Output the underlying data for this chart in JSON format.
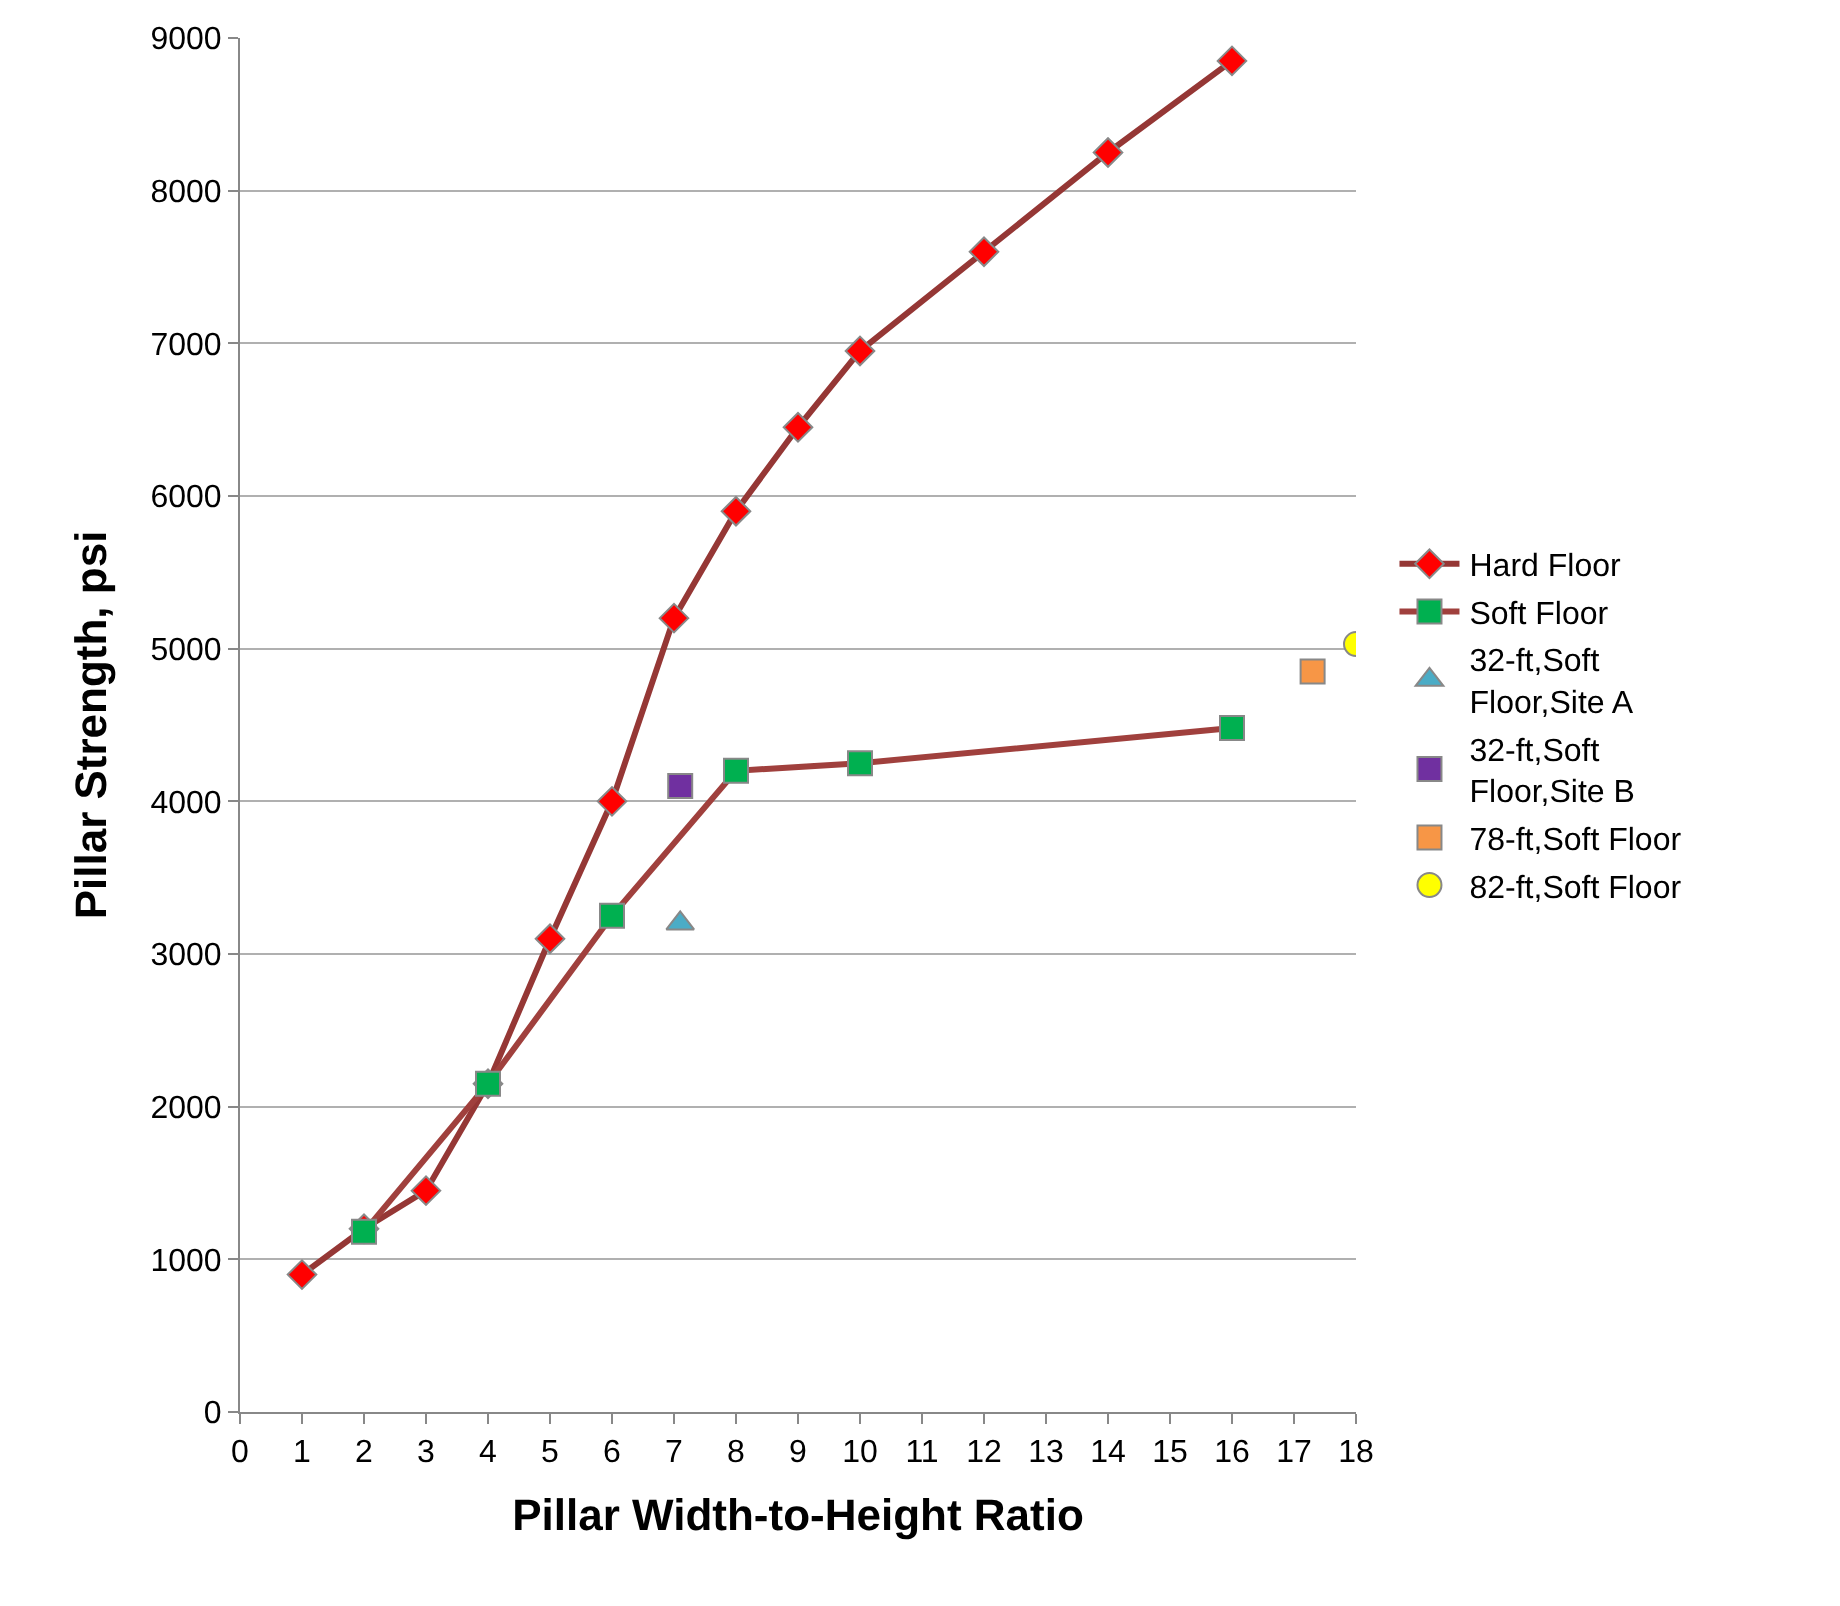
{
  "chart_data": {
    "type": "line",
    "xlabel": "Pillar Width-to-Height Ratio",
    "ylabel": "Pillar Strength, psi",
    "xlim": [
      0,
      18
    ],
    "xticks": [
      0,
      1,
      2,
      3,
      4,
      5,
      6,
      7,
      8,
      9,
      10,
      11,
      12,
      13,
      14,
      15,
      16,
      17,
      18
    ],
    "ylim": [
      0,
      9000
    ],
    "yticks": [
      0,
      1000,
      2000,
      3000,
      4000,
      5000,
      6000,
      7000,
      8000,
      9000
    ],
    "grid": "y",
    "legend": "right",
    "series": [
      {
        "name": "Hard Floor",
        "color": "#953735",
        "colors": [
          "#ff0000",
          "#ff0000",
          "#ff0000",
          "#ff0000",
          "#ff0000",
          "#ff0000",
          "#ff0000",
          "#ff0000",
          "#ff0000",
          "#ff0000",
          "#ff0000",
          "#ff0000",
          "#ff0000"
        ],
        "marker": "diamond",
        "x": [
          1,
          2,
          3,
          4,
          5,
          6,
          7,
          8,
          9,
          10,
          12,
          14,
          16
        ],
        "values": [
          900,
          1200,
          1450,
          2150,
          3100,
          4000,
          5200,
          5900,
          6450,
          6950,
          7600,
          8250,
          8850
        ]
      },
      {
        "name": "Soft Floor",
        "color": "#a0403d",
        "colors": [
          "#00b050",
          "#00b050",
          "#00b050",
          "#00b050",
          "#00b050",
          "#00b050"
        ],
        "marker": "square",
        "x": [
          2,
          4,
          6,
          8,
          10,
          16
        ],
        "values": [
          1180,
          2150,
          3250,
          4200,
          4250,
          4480
        ]
      },
      {
        "name": "32-ft,Soft\nFloor,Site A",
        "type": "scatter",
        "color": "#4bacc6",
        "marker": "triangle",
        "x": [
          7.1
        ],
        "values": [
          3200
        ]
      },
      {
        "name": "32-ft,Soft\nFloor,Site B",
        "type": "scatter",
        "color": "#7030a0",
        "marker": "square",
        "x": [
          7.1
        ],
        "values": [
          4100
        ]
      },
      {
        "name": "78-ft,Soft Floor",
        "type": "scatter",
        "color": "#f79646",
        "marker": "square",
        "x": [
          17.3
        ],
        "values": [
          4850
        ]
      },
      {
        "name": "82-ft,Soft Floor",
        "type": "scatter",
        "color": "#ffff00",
        "marker": "circle",
        "x": [
          18
        ],
        "values": [
          5030
        ]
      }
    ]
  }
}
